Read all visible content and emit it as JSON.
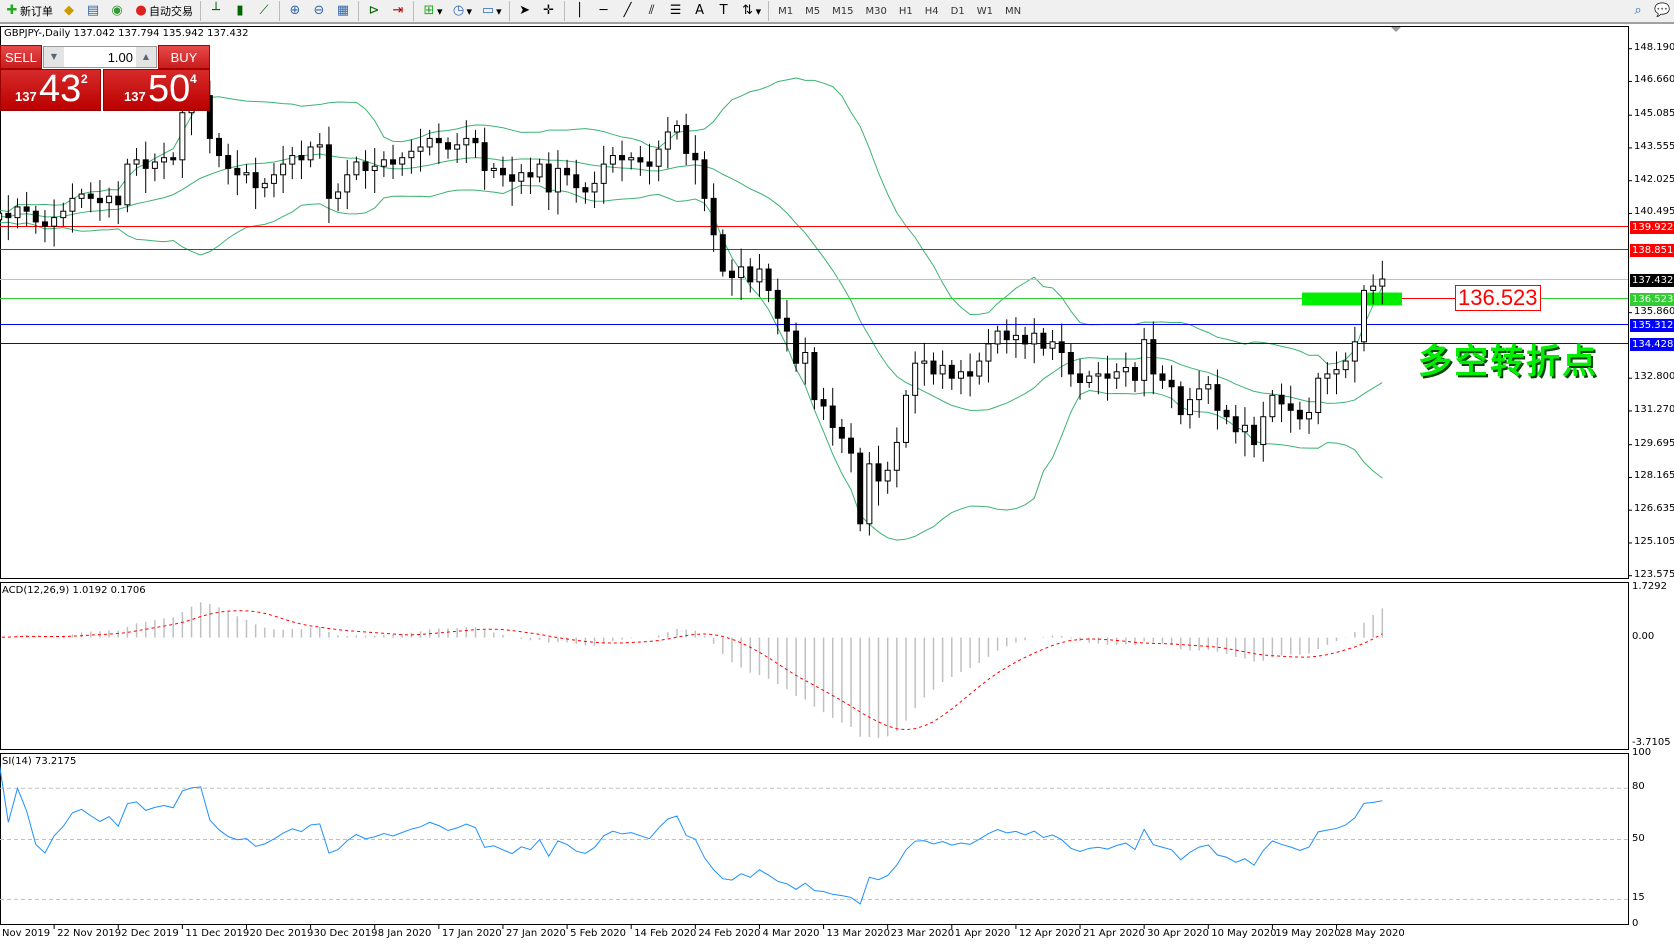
{
  "toolbar": {
    "new_order": "新订单",
    "auto_trading": "自动交易",
    "timeframes": [
      "M1",
      "M5",
      "M15",
      "M30",
      "H1",
      "H4",
      "D1",
      "W1",
      "MN"
    ],
    "icons": [
      "metaeditor-icon",
      "navigator-icon",
      "signals-icon",
      "bar-chart-icon",
      "candlestick-icon",
      "line-chart-icon",
      "zoom-in-icon",
      "zoom-out-icon",
      "tile-windows-icon",
      "chart-shift-icon",
      "autoscroll-icon",
      "indicators-icon",
      "periods-icon",
      "templates-icon",
      "cursor-icon",
      "crosshair-icon",
      "vertical-line-icon",
      "horizontal-line-icon",
      "trendline-icon",
      "equidistant-channel-icon",
      "fibonacci-icon",
      "text-icon",
      "text-label-icon",
      "arrows-icon",
      "search-icon",
      "chat-icon"
    ]
  },
  "symbol_header": "GBPJPY-,Daily  137.042 137.794 135.942 137.432",
  "trade_panel": {
    "sell": "SELL",
    "buy": "BUY",
    "lots": "1.00",
    "sell_prefix": "137",
    "sell_big": "43",
    "sell_sup": "2",
    "buy_prefix": "137",
    "buy_big": "50",
    "buy_sup": "4"
  },
  "price_axis": [
    "148.190",
    "146.660",
    "145.085",
    "143.555",
    "142.025",
    "140.495",
    "135.860",
    "132.800",
    "131.270",
    "129.695",
    "128.165",
    "126.635",
    "125.105",
    "123.575"
  ],
  "hlines": [
    {
      "price": 139.922,
      "label": "139.922",
      "color": "#ff0000"
    },
    {
      "price": 138.851,
      "label": "138.851",
      "color": "#ff0000"
    },
    {
      "price": 137.432,
      "label": "137.432",
      "color": "#000000",
      "line": "#c0c0c0"
    },
    {
      "price": 136.523,
      "label": "136.523",
      "color": "#32cd32"
    },
    {
      "price": 135.312,
      "label": "135.312",
      "color": "#0000ff"
    },
    {
      "price": 134.428,
      "label": "134.428",
      "color": "#0000ff"
    }
  ],
  "annotations": {
    "price_tag": "136.523",
    "text": "多空转折点",
    "zone": {
      "from": 136.2,
      "to": 136.8,
      "color": "#00ee00"
    }
  },
  "macd": {
    "label": "ACD(12,26,9) 1.0192 0.1706",
    "axis": [
      "1.7292",
      "0.00",
      "-3.7105"
    ],
    "range": [
      -3.7105,
      1.7292
    ]
  },
  "rsi": {
    "label": "SI(14) 73.2175",
    "axis": [
      "100",
      "80",
      "50",
      "15",
      "0"
    ],
    "levels": [
      80,
      50,
      15
    ]
  },
  "dates": [
    "Nov 2019",
    "22 Nov 2019",
    "2 Dec 2019",
    "11 Dec 2019",
    "20 Dec 2019",
    "30 Dec 2019",
    "8 Jan 2020",
    "17 Jan 2020",
    "27 Jan 2020",
    "5 Feb 2020",
    "14 Feb 2020",
    "24 Feb 2020",
    "4 Mar 2020",
    "13 Mar 2020",
    "23 Mar 2020",
    "1 Apr 2020",
    "12 Apr 2020",
    "21 Apr 2020",
    "30 Apr 2020",
    "10 May 2020",
    "19 May 2020",
    "28 May 2020"
  ],
  "chart_data": {
    "type": "candlestick",
    "symbol": "GBPJPY-",
    "timeframe": "Daily",
    "ylim": [
      123.575,
      148.19
    ],
    "colors": {
      "bands": "#3cb371",
      "rsi": "#1e90ff",
      "macd_hist": "#c0c0c0",
      "macd_signal": "#ff0000"
    },
    "indicators": [
      "Bollinger Bands",
      "MACD(12,26,9)",
      "RSI(14)"
    ],
    "close": [
      140.2,
      140.5,
      140.3,
      140.8,
      140.6,
      140.1,
      139.9,
      140.3,
      140.6,
      141.2,
      141.4,
      141.2,
      141.0,
      141.3,
      140.9,
      142.8,
      143.0,
      142.6,
      142.9,
      143.1,
      143.0,
      145.2,
      145.8,
      146.0,
      144.0,
      143.2,
      142.6,
      142.3,
      142.4,
      141.7,
      141.9,
      142.3,
      142.8,
      143.2,
      143.0,
      143.6,
      143.7,
      141.2,
      141.5,
      142.3,
      142.9,
      142.5,
      142.7,
      143.0,
      142.8,
      143.1,
      143.4,
      143.6,
      144.0,
      143.8,
      143.5,
      143.7,
      144.0,
      143.8,
      142.5,
      142.6,
      142.3,
      142.0,
      142.4,
      142.2,
      142.8,
      141.5,
      142.6,
      142.3,
      141.7,
      141.5,
      141.9,
      142.8,
      143.2,
      143.0,
      143.1,
      142.9,
      142.7,
      143.5,
      144.3,
      144.6,
      143.3,
      143.0,
      141.2,
      139.5,
      137.8,
      137.5,
      138.0,
      137.3,
      137.9,
      136.9,
      135.6,
      135.0,
      133.5,
      134.0,
      131.8,
      131.5,
      130.5,
      130.0,
      129.3,
      126.0,
      128.8,
      128.0,
      128.5,
      129.8,
      132.0,
      133.5,
      133.6,
      133.0,
      133.4,
      132.8,
      133.1,
      132.9,
      133.6,
      134.4,
      135.0,
      134.6,
      134.8,
      134.4,
      134.9,
      134.2,
      134.5,
      134.0,
      133.0,
      132.6,
      132.9,
      133.0,
      132.8,
      133.1,
      133.3,
      132.7,
      134.6,
      133.0,
      132.7,
      132.4,
      131.1,
      131.8,
      132.3,
      132.5,
      131.3,
      131.0,
      130.3,
      130.6,
      129.7,
      131.0,
      132.0,
      131.6,
      131.3,
      130.9,
      131.2,
      132.8,
      133.0,
      133.2,
      133.6,
      134.5,
      136.9,
      137.1,
      137.432
    ]
  }
}
